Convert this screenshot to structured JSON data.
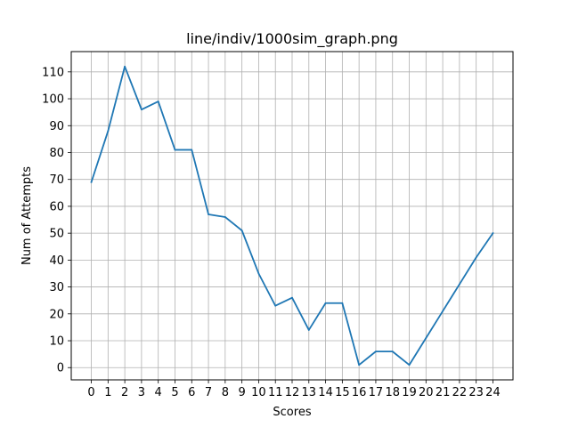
{
  "chart_data": {
    "type": "line",
    "title": "line/indiv/1000sim_graph.png",
    "xlabel": "Scores",
    "ylabel": "Num of Attempts",
    "x": [
      0,
      1,
      2,
      3,
      4,
      5,
      6,
      7,
      8,
      9,
      10,
      11,
      12,
      13,
      14,
      15,
      16,
      17,
      18,
      19,
      20,
      21,
      22,
      23,
      24
    ],
    "series": [
      {
        "color": "#1f77b4",
        "values": [
          69,
          88,
          112,
          96,
          99,
          81,
          81,
          57,
          56,
          51,
          35,
          23,
          26,
          14,
          24,
          24,
          1,
          6,
          6,
          1,
          11,
          21,
          31,
          41,
          50
        ]
      }
    ],
    "xlim": [
      -1.2,
      25.2
    ],
    "ylim": [
      -4.55,
      117.55
    ],
    "xticks": [
      0,
      1,
      2,
      3,
      4,
      5,
      6,
      7,
      8,
      9,
      10,
      11,
      12,
      13,
      14,
      15,
      16,
      17,
      18,
      19,
      20,
      21,
      22,
      23,
      24
    ],
    "yticks": [
      0,
      10,
      20,
      30,
      40,
      50,
      60,
      70,
      80,
      90,
      100,
      110
    ],
    "grid": true,
    "legend": "none"
  }
}
